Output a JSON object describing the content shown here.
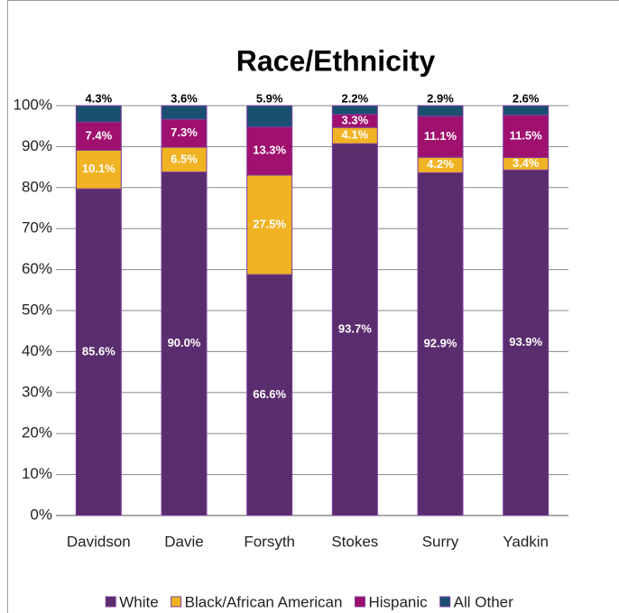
{
  "chart_data": {
    "type": "bar",
    "stacking": "percent",
    "title": "Race/Ethnicity",
    "categories": [
      "Davidson",
      "Davie",
      "Forsyth",
      "Stokes",
      "Surry",
      "Yadkin"
    ],
    "series": [
      {
        "name": "White",
        "color": "#5a2d6e",
        "values": [
          85.6,
          90.0,
          66.6,
          93.7,
          92.9,
          93.9
        ],
        "value_labels": [
          "85.6%",
          "90.0%",
          "66.6%",
          "93.7%",
          "92.9%",
          "93.9%"
        ]
      },
      {
        "name": "Black/African American",
        "color": "#f0b323",
        "values": [
          10.1,
          6.5,
          27.5,
          4.1,
          4.2,
          3.4
        ],
        "value_labels": [
          "10.1%",
          "6.5%",
          "27.5%",
          "4.1%",
          "4.2%",
          "3.4%"
        ]
      },
      {
        "name": "Hispanic",
        "color": "#a0106e",
        "values": [
          7.4,
          7.3,
          13.3,
          3.3,
          11.1,
          11.5
        ],
        "value_labels": [
          "7.4%",
          "7.3%",
          "13.3%",
          "3.3%",
          "11.1%",
          "11.5%"
        ]
      },
      {
        "name": "All Other",
        "color": "#1b4f72",
        "values": [
          4.3,
          3.6,
          5.9,
          2.2,
          2.9,
          2.6
        ],
        "value_labels": [
          "4.3%",
          "3.6%",
          "5.9%",
          "2.2%",
          "2.9%",
          "2.6%"
        ]
      }
    ],
    "ylim": [
      0,
      100
    ],
    "yticks": [
      {
        "value": 0,
        "label": "0%"
      },
      {
        "value": 10,
        "label": "10%"
      },
      {
        "value": 20,
        "label": "20%"
      },
      {
        "value": 30,
        "label": "30%"
      },
      {
        "value": 40,
        "label": "40%"
      },
      {
        "value": 50,
        "label": "50%"
      },
      {
        "value": 60,
        "label": "60%"
      },
      {
        "value": 70,
        "label": "70%"
      },
      {
        "value": 80,
        "label": "80%"
      },
      {
        "value": 90,
        "label": "90%"
      },
      {
        "value": 100,
        "label": "100%"
      }
    ],
    "grid": true,
    "legend": "bottom"
  }
}
